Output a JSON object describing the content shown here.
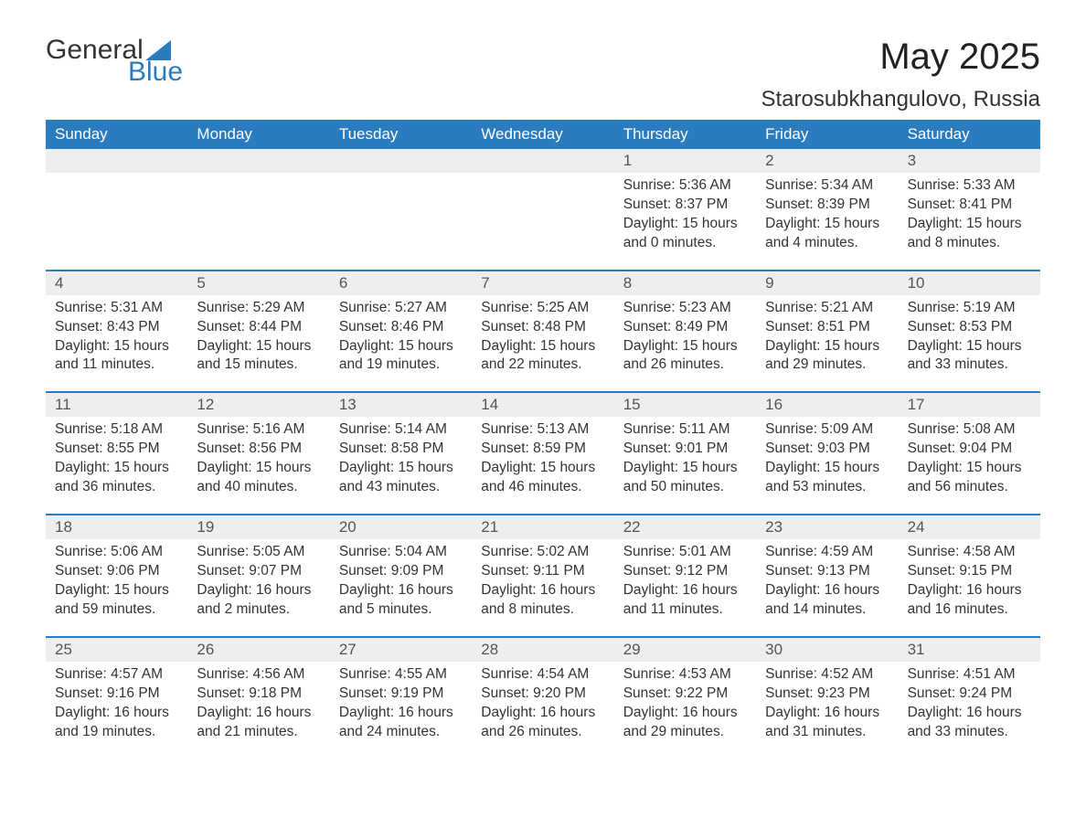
{
  "logo": {
    "text1": "General",
    "text2": "Blue",
    "color1": "#333333",
    "color2": "#2b7bbf",
    "triangle_color": "#2b7bbf"
  },
  "title": "May 2025",
  "location": "Starosubkhangulovo, Russia",
  "colors": {
    "header_bg": "#2b7bbf",
    "header_text": "#ffffff",
    "daynum_bg": "#eeeeee",
    "daynum_text": "#555555",
    "body_text": "#333333",
    "week_divider": "#2b7bbf",
    "page_bg": "#ffffff"
  },
  "typography": {
    "title_fontsize": 40,
    "location_fontsize": 24,
    "dow_fontsize": 17,
    "daynum_fontsize": 17,
    "body_fontsize": 15.5
  },
  "days_of_week": [
    "Sunday",
    "Monday",
    "Tuesday",
    "Wednesday",
    "Thursday",
    "Friday",
    "Saturday"
  ],
  "weeks": [
    [
      {
        "day": "",
        "sunrise": "",
        "sunset": "",
        "daylight1": "",
        "daylight2": ""
      },
      {
        "day": "",
        "sunrise": "",
        "sunset": "",
        "daylight1": "",
        "daylight2": ""
      },
      {
        "day": "",
        "sunrise": "",
        "sunset": "",
        "daylight1": "",
        "daylight2": ""
      },
      {
        "day": "",
        "sunrise": "",
        "sunset": "",
        "daylight1": "",
        "daylight2": ""
      },
      {
        "day": "1",
        "sunrise": "Sunrise: 5:36 AM",
        "sunset": "Sunset: 8:37 PM",
        "daylight1": "Daylight: 15 hours",
        "daylight2": "and 0 minutes."
      },
      {
        "day": "2",
        "sunrise": "Sunrise: 5:34 AM",
        "sunset": "Sunset: 8:39 PM",
        "daylight1": "Daylight: 15 hours",
        "daylight2": "and 4 minutes."
      },
      {
        "day": "3",
        "sunrise": "Sunrise: 5:33 AM",
        "sunset": "Sunset: 8:41 PM",
        "daylight1": "Daylight: 15 hours",
        "daylight2": "and 8 minutes."
      }
    ],
    [
      {
        "day": "4",
        "sunrise": "Sunrise: 5:31 AM",
        "sunset": "Sunset: 8:43 PM",
        "daylight1": "Daylight: 15 hours",
        "daylight2": "and 11 minutes."
      },
      {
        "day": "5",
        "sunrise": "Sunrise: 5:29 AM",
        "sunset": "Sunset: 8:44 PM",
        "daylight1": "Daylight: 15 hours",
        "daylight2": "and 15 minutes."
      },
      {
        "day": "6",
        "sunrise": "Sunrise: 5:27 AM",
        "sunset": "Sunset: 8:46 PM",
        "daylight1": "Daylight: 15 hours",
        "daylight2": "and 19 minutes."
      },
      {
        "day": "7",
        "sunrise": "Sunrise: 5:25 AM",
        "sunset": "Sunset: 8:48 PM",
        "daylight1": "Daylight: 15 hours",
        "daylight2": "and 22 minutes."
      },
      {
        "day": "8",
        "sunrise": "Sunrise: 5:23 AM",
        "sunset": "Sunset: 8:49 PM",
        "daylight1": "Daylight: 15 hours",
        "daylight2": "and 26 minutes."
      },
      {
        "day": "9",
        "sunrise": "Sunrise: 5:21 AM",
        "sunset": "Sunset: 8:51 PM",
        "daylight1": "Daylight: 15 hours",
        "daylight2": "and 29 minutes."
      },
      {
        "day": "10",
        "sunrise": "Sunrise: 5:19 AM",
        "sunset": "Sunset: 8:53 PM",
        "daylight1": "Daylight: 15 hours",
        "daylight2": "and 33 minutes."
      }
    ],
    [
      {
        "day": "11",
        "sunrise": "Sunrise: 5:18 AM",
        "sunset": "Sunset: 8:55 PM",
        "daylight1": "Daylight: 15 hours",
        "daylight2": "and 36 minutes."
      },
      {
        "day": "12",
        "sunrise": "Sunrise: 5:16 AM",
        "sunset": "Sunset: 8:56 PM",
        "daylight1": "Daylight: 15 hours",
        "daylight2": "and 40 minutes."
      },
      {
        "day": "13",
        "sunrise": "Sunrise: 5:14 AM",
        "sunset": "Sunset: 8:58 PM",
        "daylight1": "Daylight: 15 hours",
        "daylight2": "and 43 minutes."
      },
      {
        "day": "14",
        "sunrise": "Sunrise: 5:13 AM",
        "sunset": "Sunset: 8:59 PM",
        "daylight1": "Daylight: 15 hours",
        "daylight2": "and 46 minutes."
      },
      {
        "day": "15",
        "sunrise": "Sunrise: 5:11 AM",
        "sunset": "Sunset: 9:01 PM",
        "daylight1": "Daylight: 15 hours",
        "daylight2": "and 50 minutes."
      },
      {
        "day": "16",
        "sunrise": "Sunrise: 5:09 AM",
        "sunset": "Sunset: 9:03 PM",
        "daylight1": "Daylight: 15 hours",
        "daylight2": "and 53 minutes."
      },
      {
        "day": "17",
        "sunrise": "Sunrise: 5:08 AM",
        "sunset": "Sunset: 9:04 PM",
        "daylight1": "Daylight: 15 hours",
        "daylight2": "and 56 minutes."
      }
    ],
    [
      {
        "day": "18",
        "sunrise": "Sunrise: 5:06 AM",
        "sunset": "Sunset: 9:06 PM",
        "daylight1": "Daylight: 15 hours",
        "daylight2": "and 59 minutes."
      },
      {
        "day": "19",
        "sunrise": "Sunrise: 5:05 AM",
        "sunset": "Sunset: 9:07 PM",
        "daylight1": "Daylight: 16 hours",
        "daylight2": "and 2 minutes."
      },
      {
        "day": "20",
        "sunrise": "Sunrise: 5:04 AM",
        "sunset": "Sunset: 9:09 PM",
        "daylight1": "Daylight: 16 hours",
        "daylight2": "and 5 minutes."
      },
      {
        "day": "21",
        "sunrise": "Sunrise: 5:02 AM",
        "sunset": "Sunset: 9:11 PM",
        "daylight1": "Daylight: 16 hours",
        "daylight2": "and 8 minutes."
      },
      {
        "day": "22",
        "sunrise": "Sunrise: 5:01 AM",
        "sunset": "Sunset: 9:12 PM",
        "daylight1": "Daylight: 16 hours",
        "daylight2": "and 11 minutes."
      },
      {
        "day": "23",
        "sunrise": "Sunrise: 4:59 AM",
        "sunset": "Sunset: 9:13 PM",
        "daylight1": "Daylight: 16 hours",
        "daylight2": "and 14 minutes."
      },
      {
        "day": "24",
        "sunrise": "Sunrise: 4:58 AM",
        "sunset": "Sunset: 9:15 PM",
        "daylight1": "Daylight: 16 hours",
        "daylight2": "and 16 minutes."
      }
    ],
    [
      {
        "day": "25",
        "sunrise": "Sunrise: 4:57 AM",
        "sunset": "Sunset: 9:16 PM",
        "daylight1": "Daylight: 16 hours",
        "daylight2": "and 19 minutes."
      },
      {
        "day": "26",
        "sunrise": "Sunrise: 4:56 AM",
        "sunset": "Sunset: 9:18 PM",
        "daylight1": "Daylight: 16 hours",
        "daylight2": "and 21 minutes."
      },
      {
        "day": "27",
        "sunrise": "Sunrise: 4:55 AM",
        "sunset": "Sunset: 9:19 PM",
        "daylight1": "Daylight: 16 hours",
        "daylight2": "and 24 minutes."
      },
      {
        "day": "28",
        "sunrise": "Sunrise: 4:54 AM",
        "sunset": "Sunset: 9:20 PM",
        "daylight1": "Daylight: 16 hours",
        "daylight2": "and 26 minutes."
      },
      {
        "day": "29",
        "sunrise": "Sunrise: 4:53 AM",
        "sunset": "Sunset: 9:22 PM",
        "daylight1": "Daylight: 16 hours",
        "daylight2": "and 29 minutes."
      },
      {
        "day": "30",
        "sunrise": "Sunrise: 4:52 AM",
        "sunset": "Sunset: 9:23 PM",
        "daylight1": "Daylight: 16 hours",
        "daylight2": "and 31 minutes."
      },
      {
        "day": "31",
        "sunrise": "Sunrise: 4:51 AM",
        "sunset": "Sunset: 9:24 PM",
        "daylight1": "Daylight: 16 hours",
        "daylight2": "and 33 minutes."
      }
    ]
  ]
}
